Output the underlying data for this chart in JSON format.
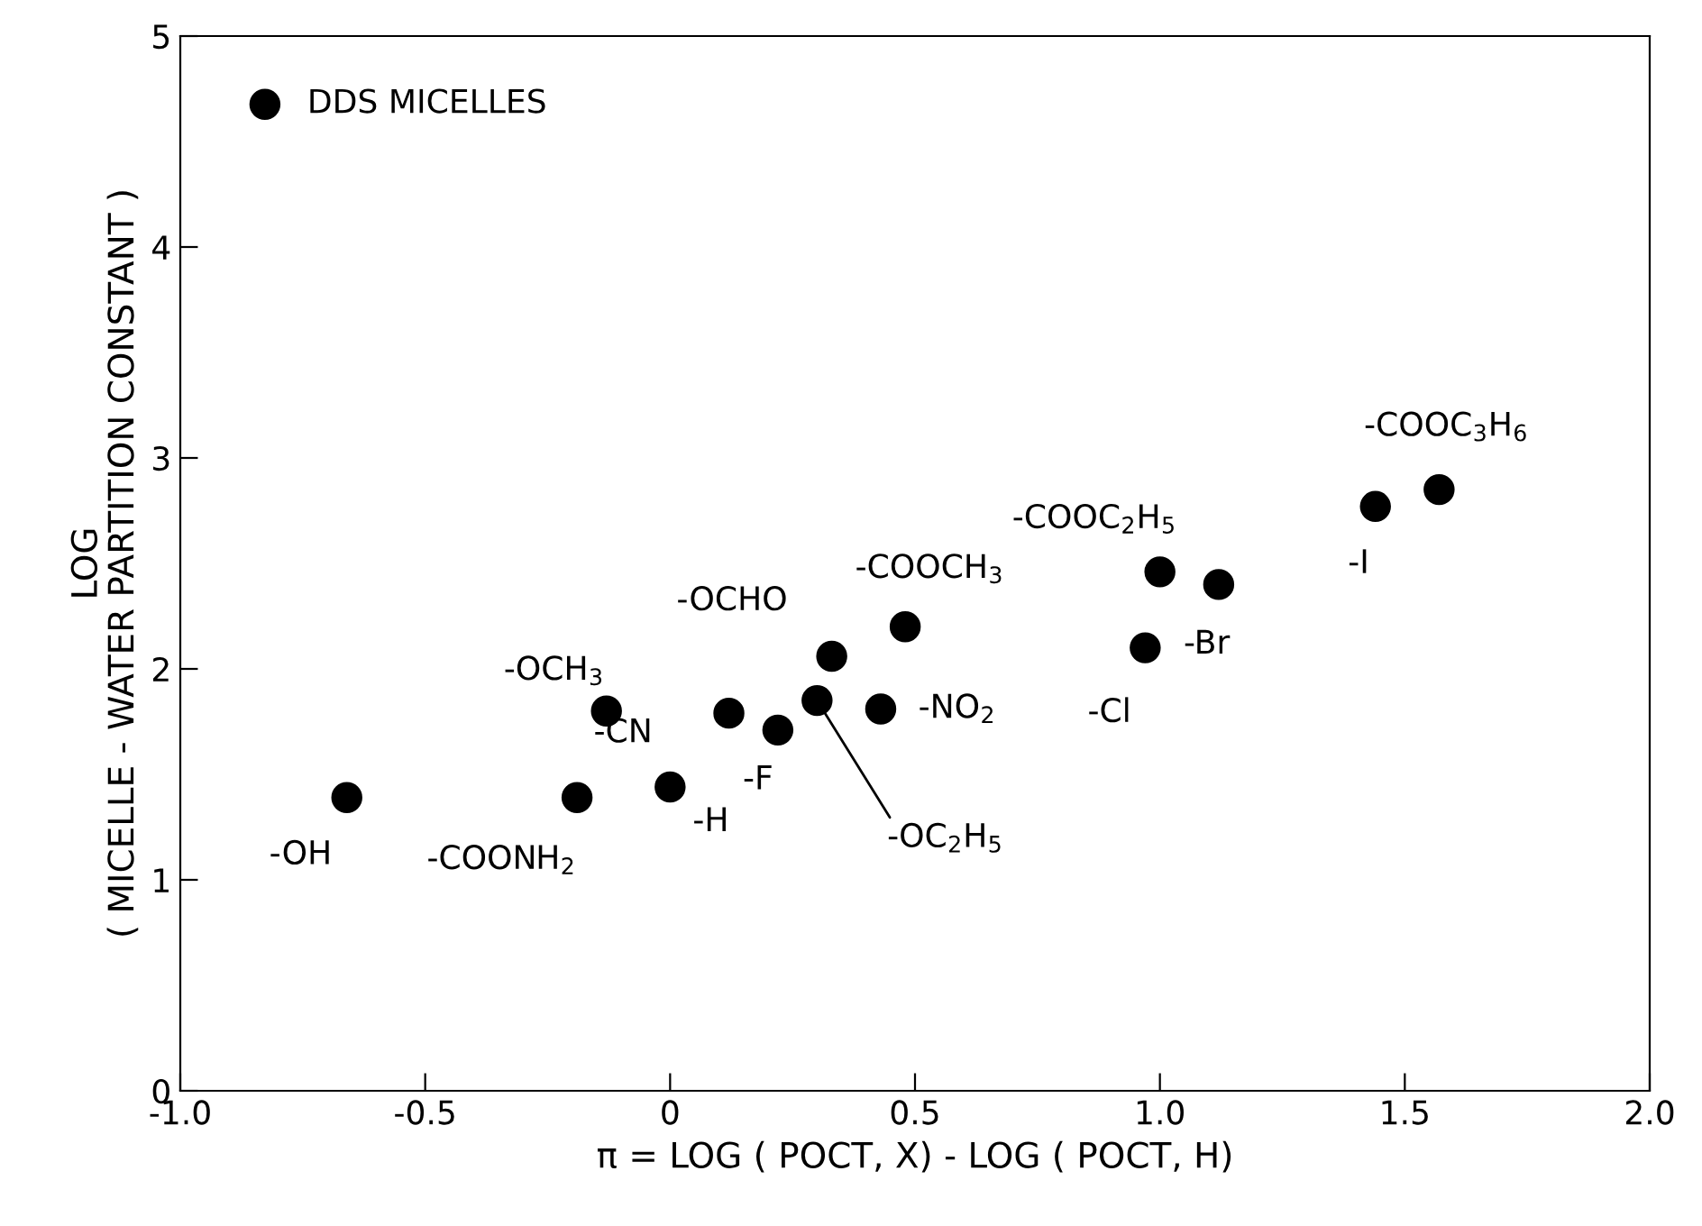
{
  "chart_data": {
    "type": "scatter",
    "xlabel": "π = LOG ( POCT, X) - LOG ( POCT, H)",
    "ylabel": "LOG\n( MICELLE - WATER PARTITION CONSTANT )",
    "xlim": [
      -1.0,
      2.0
    ],
    "xticks": [
      {
        "value": -1.0,
        "label": "-1.0"
      },
      {
        "value": -0.5,
        "label": "-0.5"
      },
      0,
      {
        "value": 0.5,
        "label": "0.5"
      },
      {
        "value": 1.0,
        "label": "1.0"
      },
      {
        "value": 1.5,
        "label": "1.5"
      },
      {
        "value": 2.0,
        "label": "2.0"
      }
    ],
    "ylim": [
      0,
      5
    ],
    "yticks": [
      0,
      1,
      2,
      3,
      4,
      5
    ],
    "grid": false,
    "legend": "top left",
    "marker": "circle",
    "series": [
      {
        "name": "DDS MICELLES",
        "color": "#000000",
        "x": [
          -0.66,
          -0.19,
          0.0,
          -0.13,
          0.12,
          0.22,
          0.3,
          0.33,
          0.48,
          0.43,
          0.97,
          1.0,
          1.12,
          1.44,
          1.57
        ],
        "values": [
          1.39,
          1.39,
          1.44,
          1.8,
          1.79,
          1.71,
          1.85,
          2.06,
          2.2,
          1.81,
          2.1,
          2.46,
          2.4,
          2.77,
          2.85
        ]
      }
    ],
    "annotations": [
      {
        "text": "-OH",
        "x": -0.66,
        "y": 1.39
      },
      {
        "text": "-COONH$_{2}$",
        "x": -0.19,
        "y": 1.39
      },
      {
        "text": "-H",
        "x": 0.0,
        "y": 1.44
      },
      {
        "text": "-OCH$_{3}$",
        "x": -0.13,
        "y": 1.8
      },
      {
        "text": "-CN",
        "x": 0.12,
        "y": 1.79
      },
      {
        "text": "-F",
        "x": 0.22,
        "y": 1.71
      },
      {
        "text": "-OC$_{2}$H$_{5}$",
        "x": 0.3,
        "y": 1.85
      },
      {
        "text": "-OCHO",
        "x": 0.33,
        "y": 2.06
      },
      {
        "text": "-COOCH$_{3}$",
        "x": 0.48,
        "y": 2.2
      },
      {
        "text": "-NO$_{2}$",
        "x": 0.43,
        "y": 1.81
      },
      {
        "text": "-Cl",
        "x": 0.97,
        "y": 2.1
      },
      {
        "text": "-COOC$_{2}$H$_{5}$",
        "x": 1.0,
        "y": 2.46
      },
      {
        "text": "-Br",
        "x": 1.12,
        "y": 2.4
      },
      {
        "text": "-I",
        "x": 1.44,
        "y": 2.77
      },
      {
        "text": "-COOC$_{3}$H$_{6}$",
        "x": 1.57,
        "y": 2.85
      }
    ]
  }
}
